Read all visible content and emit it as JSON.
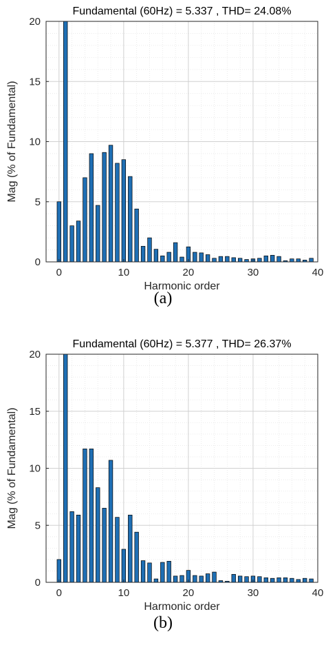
{
  "charts": [
    {
      "caption": "(a)",
      "chart_data": {
        "type": "bar",
        "title": "Fundamental (60Hz) = 5.337 , THD= 24.08%",
        "xlabel": "Harmonic order",
        "ylabel": "Mag (% of Fundamental)",
        "xlim": [
          -2,
          40
        ],
        "ylim": [
          0,
          20
        ],
        "xticks": [
          0,
          10,
          20,
          30,
          40
        ],
        "yticks": [
          0,
          5,
          10,
          15,
          20
        ],
        "grid": true,
        "bar_color": "#1f6fb4",
        "x": [
          0,
          1,
          2,
          3,
          4,
          5,
          6,
          7,
          8,
          9,
          10,
          11,
          12,
          13,
          14,
          15,
          16,
          17,
          18,
          19,
          20,
          21,
          22,
          23,
          24,
          25,
          26,
          27,
          28,
          29,
          30,
          31,
          32,
          33,
          34,
          35,
          36,
          37,
          38,
          39
        ],
        "values": [
          5.0,
          20,
          3.0,
          3.4,
          7.0,
          9.0,
          4.7,
          9.1,
          9.7,
          8.2,
          8.5,
          7.1,
          4.4,
          1.3,
          2.0,
          1.05,
          0.5,
          0.8,
          1.6,
          0.4,
          1.25,
          0.8,
          0.75,
          0.6,
          0.3,
          0.45,
          0.45,
          0.35,
          0.3,
          0.2,
          0.25,
          0.3,
          0.5,
          0.55,
          0.45,
          0.1,
          0.25,
          0.25,
          0.15,
          0.3
        ]
      }
    },
    {
      "caption": "(b)",
      "chart_data": {
        "type": "bar",
        "title": "Fundamental (60Hz) = 5.377 , THD= 26.37%",
        "xlabel": "Harmonic order",
        "ylabel": "Mag (% of Fundamental)",
        "xlim": [
          -2,
          40
        ],
        "ylim": [
          0,
          20
        ],
        "xticks": [
          0,
          10,
          20,
          30,
          40
        ],
        "yticks": [
          0,
          5,
          10,
          15,
          20
        ],
        "grid": true,
        "bar_color": "#1f6fb4",
        "x": [
          0,
          1,
          2,
          3,
          4,
          5,
          6,
          7,
          8,
          9,
          10,
          11,
          12,
          13,
          14,
          15,
          16,
          17,
          18,
          19,
          20,
          21,
          22,
          23,
          24,
          25,
          26,
          27,
          28,
          29,
          30,
          31,
          32,
          33,
          34,
          35,
          36,
          37,
          38,
          39
        ],
        "values": [
          2.0,
          20,
          6.2,
          5.9,
          11.7,
          11.7,
          8.3,
          6.5,
          10.7,
          5.7,
          2.9,
          5.9,
          4.4,
          1.9,
          1.7,
          0.3,
          1.75,
          1.85,
          0.55,
          0.6,
          1.05,
          0.6,
          0.55,
          0.75,
          0.9,
          0.15,
          0.1,
          0.7,
          0.55,
          0.5,
          0.55,
          0.5,
          0.4,
          0.35,
          0.4,
          0.4,
          0.35,
          0.25,
          0.35,
          0.3
        ]
      }
    }
  ]
}
